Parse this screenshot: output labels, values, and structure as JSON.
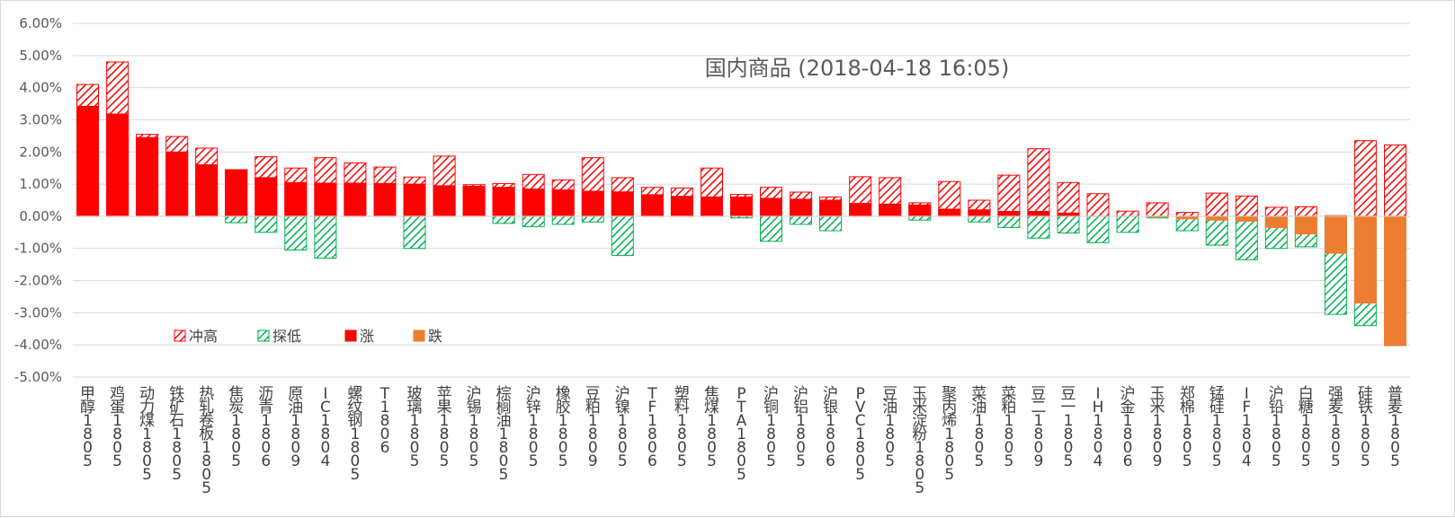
{
  "chart_data": {
    "type": "bar",
    "title": "国内商品 (2018-04-18 16:05)",
    "xlabel": "",
    "ylabel": "",
    "ylim": [
      -5,
      6
    ],
    "yticks": [
      "-5.00%",
      "-4.00%",
      "-3.00%",
      "-2.00%",
      "-1.00%",
      "0.00%",
      "1.00%",
      "2.00%",
      "3.00%",
      "4.00%",
      "5.00%",
      "6.00%"
    ],
    "grid": true,
    "legend_position": "bottom-left (inside plot)",
    "colors": {
      "high": "#ff0000",
      "low": "#00b050",
      "rise": "#ff0000",
      "fall": "#ed7d31"
    },
    "legend": [
      {
        "key": "high",
        "label": "冲高",
        "style": "hatch-red"
      },
      {
        "key": "low",
        "label": "探低",
        "style": "hatch-green"
      },
      {
        "key": "rise",
        "label": "涨",
        "style": "solid-red"
      },
      {
        "key": "fall",
        "label": "跌",
        "style": "solid-orange"
      }
    ],
    "categories": [
      "甲醇1805",
      "鸡蛋1805",
      "动力煤1805",
      "铁矿石1805",
      "热轧卷板1805",
      "焦炭1805",
      "沥青1806",
      "原油1809",
      "IC1804",
      "螺纹钢1805",
      "T1806",
      "玻璃1805",
      "苹果1805",
      "沪锡1805",
      "棕榈油1805",
      "沪锌1805",
      "橡胶1805",
      "豆粕1809",
      "沪镍1805",
      "TF1806",
      "塑料1805",
      "焦煤1805",
      "PTA1805",
      "沪铜1805",
      "沪铝1805",
      "沪银1806",
      "PVC1805",
      "豆油1805",
      "玉米淀粉1805",
      "聚丙烯1805",
      "菜油1805",
      "菜粕1805",
      "豆二1809",
      "豆一1805",
      "IH1804",
      "沪金1806",
      "玉米1809",
      "郑棉1805",
      "锰硅1805",
      "IF1804",
      "沪铅1805",
      "白糖1805",
      "强麦1805",
      "硅铁1805",
      "普麦1805"
    ],
    "series": [
      {
        "name": "冲高",
        "values": [
          4.1,
          4.8,
          2.55,
          2.48,
          2.12,
          1.45,
          1.85,
          1.5,
          1.82,
          1.66,
          1.53,
          1.22,
          1.87,
          0.98,
          1.02,
          1.3,
          1.13,
          1.82,
          1.2,
          0.9,
          0.88,
          1.5,
          0.68,
          0.9,
          0.75,
          0.6,
          1.23,
          1.2,
          0.42,
          1.08,
          0.5,
          1.28,
          2.1,
          1.05,
          0.7,
          0.16,
          0.42,
          0.12,
          0.72,
          0.63,
          0.28,
          0.3,
          0.02,
          2.35,
          2.22
        ]
      },
      {
        "name": "探低",
        "values": [
          0,
          0,
          0,
          0,
          0,
          -0.2,
          -0.5,
          -1.05,
          -1.3,
          0,
          0,
          -1.0,
          0,
          0,
          -0.22,
          -0.32,
          -0.25,
          -0.18,
          -1.22,
          0,
          0,
          0,
          -0.05,
          -0.78,
          -0.25,
          -0.45,
          0,
          0,
          -0.12,
          0,
          -0.18,
          -0.35,
          -0.68,
          -0.52,
          -0.82,
          -0.5,
          -0.05,
          -0.45,
          -0.9,
          -1.35,
          -1.0,
          -0.95,
          -3.05,
          -3.4,
          -4.02
        ]
      },
      {
        "name": "涨",
        "values": [
          3.42,
          3.18,
          2.45,
          2.0,
          1.6,
          1.45,
          1.2,
          1.05,
          1.03,
          1.03,
          1.02,
          1.0,
          0.95,
          0.93,
          0.9,
          0.85,
          0.82,
          0.78,
          0.76,
          0.67,
          0.62,
          0.6,
          0.6,
          0.56,
          0.53,
          0.5,
          0.4,
          0.38,
          0.35,
          0.22,
          0.2,
          0.15,
          0.15,
          0.1,
          0,
          0,
          0,
          0,
          0,
          0,
          0,
          0,
          0,
          0,
          0
        ]
      },
      {
        "name": "跌",
        "values": [
          0,
          0,
          0,
          0,
          0,
          0,
          0,
          0,
          0,
          0,
          0,
          0,
          0,
          0,
          0,
          0,
          0,
          0,
          0,
          0,
          0,
          0,
          0,
          0,
          0,
          0,
          0,
          0,
          0,
          0,
          0,
          0,
          0,
          0,
          0,
          0,
          -0.02,
          -0.08,
          -0.12,
          -0.15,
          -0.35,
          -0.55,
          -1.15,
          -2.7,
          -4.02
        ]
      }
    ]
  }
}
